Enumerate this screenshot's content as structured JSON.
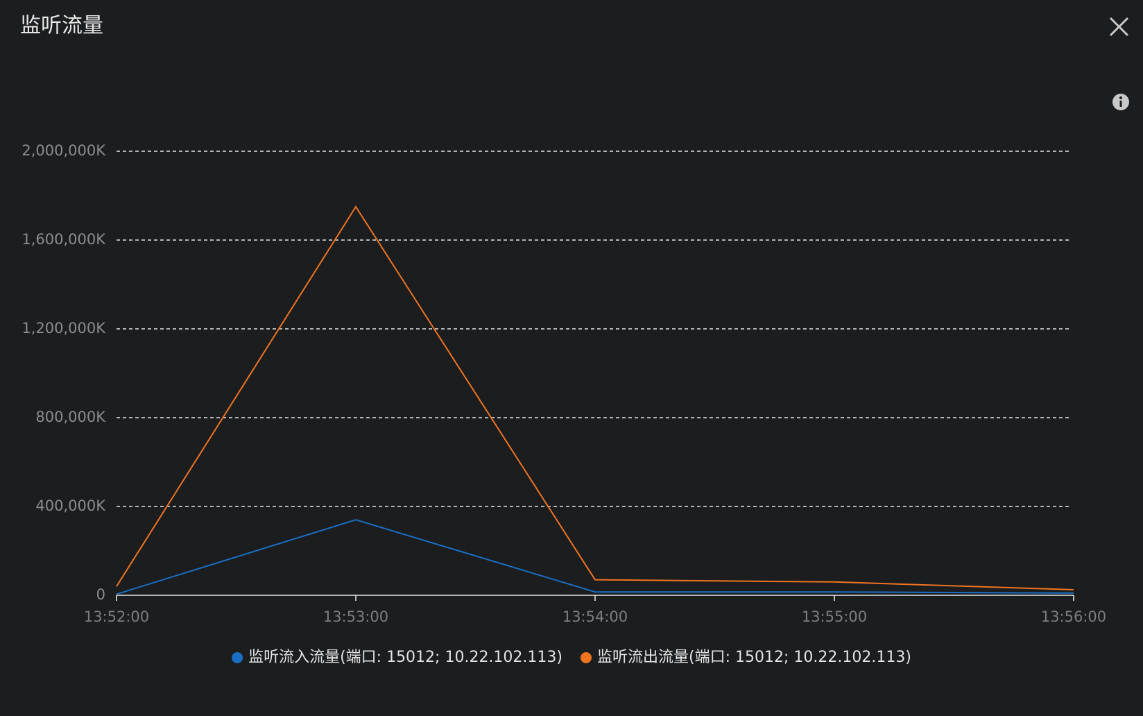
{
  "chart_data": {
    "type": "line",
    "title": "监听流量",
    "categories": [
      "13:52:00",
      "13:53:00",
      "13:54:00",
      "13:55:00",
      "13:56:00"
    ],
    "series": [
      {
        "name": "监听流入流量(端口: 15012; 10.22.102.113)",
        "color": "#1a6fc4",
        "values": [
          5000,
          340000,
          15000,
          15000,
          10000
        ]
      },
      {
        "name": "监听流出流量(端口: 15012; 10.22.102.113)",
        "color": "#f07420",
        "values": [
          40000,
          1750000,
          70000,
          60000,
          25000
        ]
      }
    ],
    "ylim": [
      0,
      2000000
    ],
    "yticks": [
      0,
      {
        "value": 400000,
        "label": "400,000K"
      },
      {
        "value": 800000,
        "label": "800,000K"
      },
      {
        "value": 1200000,
        "label": "1,200,000K"
      },
      {
        "value": 1600000,
        "label": "1,600,000K"
      },
      {
        "value": 2000000,
        "label": "2,000,000K"
      }
    ],
    "grid": true,
    "legend": "bottom"
  }
}
